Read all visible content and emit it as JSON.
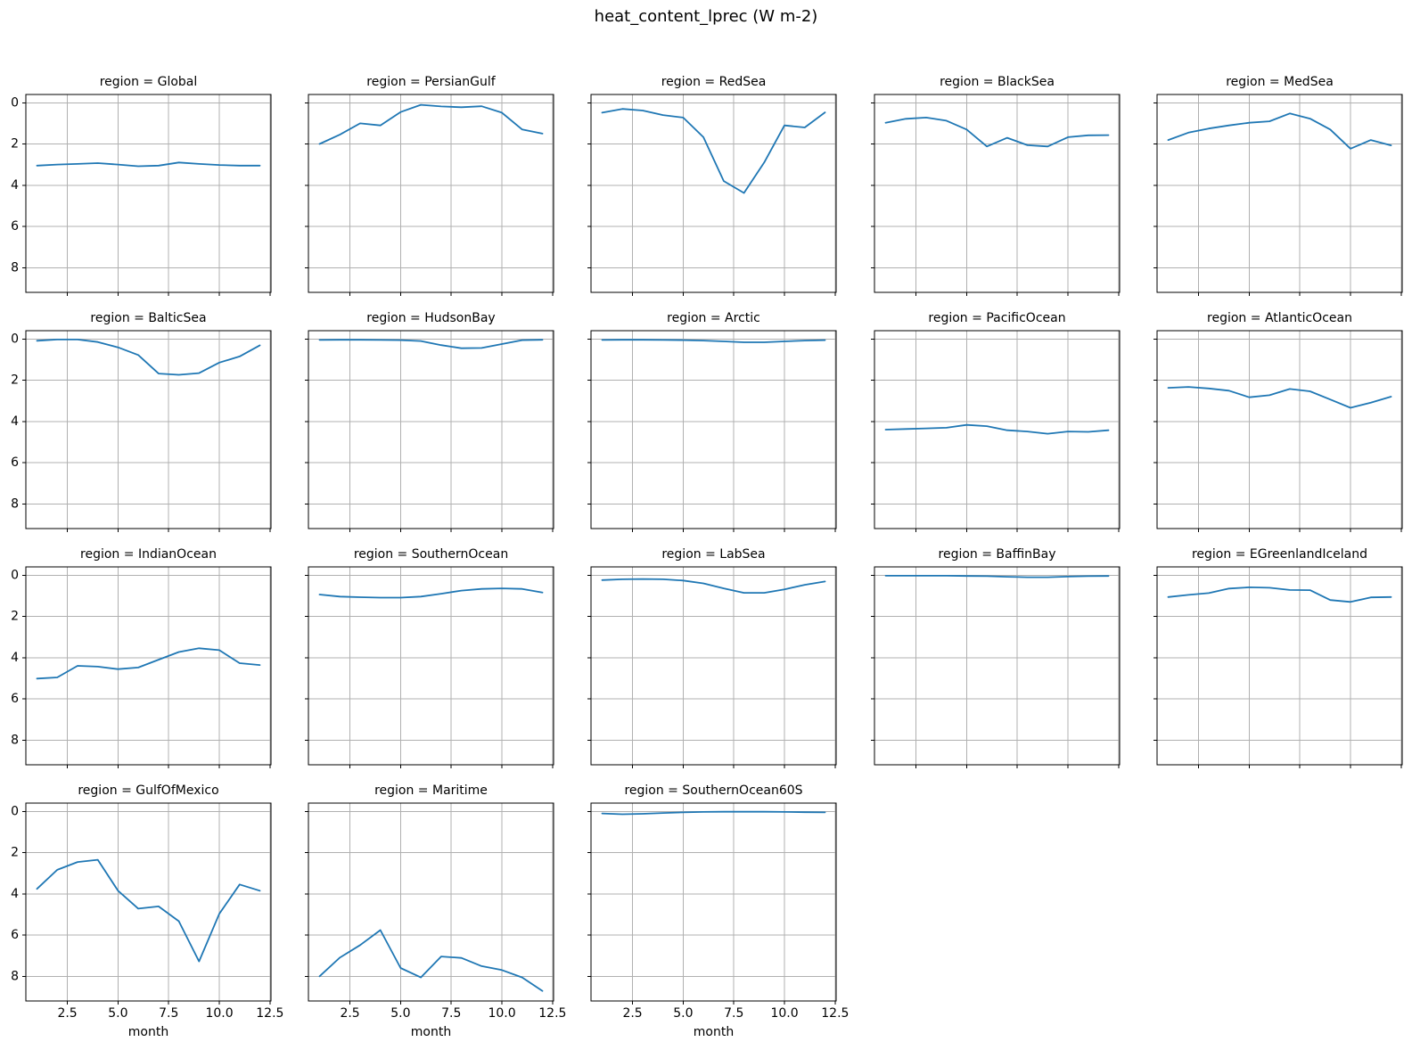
{
  "chart_data": {
    "type": "line",
    "title": "heat_content_lprec (W m-2)",
    "xlabel": "month",
    "x": [
      1,
      2,
      3,
      4,
      5,
      6,
      7,
      8,
      9,
      10,
      11,
      12
    ],
    "x_ticks": [
      2.5,
      5.0,
      7.5,
      10.0,
      12.5
    ],
    "x_tick_labels": [
      "2.5",
      "5.0",
      "7.5",
      "10.0",
      "12.5"
    ],
    "y_ticks": [
      0,
      2,
      4,
      6,
      8
    ],
    "y_tick_labels": [
      "0",
      "2",
      "4",
      "6",
      "8"
    ],
    "xlim": [
      0.45,
      12.55
    ],
    "ylim": [
      -0.4,
      9.2
    ],
    "y_axis_inverted": true,
    "grid": true,
    "legend": "none",
    "line_color": "#1f77b4",
    "grid_color": "#b0b0b0",
    "facet_columns": 5,
    "facet_title_prefix": "region = ",
    "series": [
      {
        "name": "Global",
        "label": "region = Global",
        "values": [
          3.05,
          3.0,
          2.97,
          2.93,
          3.0,
          3.08,
          3.05,
          2.9,
          2.97,
          3.02,
          3.05,
          3.05
        ]
      },
      {
        "name": "PersianGulf",
        "label": "region = PersianGulf",
        "values": [
          2.0,
          1.55,
          1.0,
          1.1,
          0.45,
          0.1,
          0.18,
          0.22,
          0.17,
          0.48,
          1.3,
          1.5
        ]
      },
      {
        "name": "RedSea",
        "label": "region = RedSea",
        "values": [
          0.48,
          0.3,
          0.38,
          0.6,
          0.72,
          1.67,
          3.8,
          4.38,
          2.9,
          1.1,
          1.2,
          0.47
        ]
      },
      {
        "name": "BlackSea",
        "label": "region = BlackSea",
        "values": [
          0.97,
          0.78,
          0.72,
          0.87,
          1.3,
          2.12,
          1.7,
          2.06,
          2.12,
          1.67,
          1.58,
          1.57
        ]
      },
      {
        "name": "MedSea",
        "label": "region = MedSea",
        "values": [
          1.81,
          1.45,
          1.25,
          1.1,
          0.97,
          0.9,
          0.52,
          0.77,
          1.3,
          2.23,
          1.81,
          2.07
        ]
      },
      {
        "name": "BalticSea",
        "label": "region = BalticSea",
        "values": [
          0.09,
          0.03,
          0.03,
          0.15,
          0.41,
          0.78,
          1.68,
          1.74,
          1.66,
          1.15,
          0.85,
          0.31
        ]
      },
      {
        "name": "HudsonBay",
        "label": "region = HudsonBay",
        "values": [
          0.05,
          0.04,
          0.04,
          0.05,
          0.06,
          0.1,
          0.3,
          0.45,
          0.44,
          0.25,
          0.06,
          0.04
        ]
      },
      {
        "name": "Arctic",
        "label": "region = Arctic",
        "values": [
          0.05,
          0.04,
          0.04,
          0.05,
          0.06,
          0.08,
          0.12,
          0.16,
          0.16,
          0.12,
          0.08,
          0.06
        ]
      },
      {
        "name": "PacificOcean",
        "label": "region = PacificOcean",
        "values": [
          4.4,
          4.37,
          4.34,
          4.31,
          4.17,
          4.23,
          4.43,
          4.49,
          4.6,
          4.49,
          4.51,
          4.43
        ]
      },
      {
        "name": "AtlanticOcean",
        "label": "region = AtlanticOcean",
        "values": [
          2.37,
          2.33,
          2.4,
          2.51,
          2.83,
          2.73,
          2.43,
          2.54,
          2.94,
          3.34,
          3.09,
          2.8
        ]
      },
      {
        "name": "IndianOcean",
        "label": "region = IndianOcean",
        "values": [
          5.02,
          4.96,
          4.4,
          4.44,
          4.56,
          4.48,
          4.1,
          3.73,
          3.55,
          3.64,
          4.27,
          4.36
        ]
      },
      {
        "name": "SouthernOcean",
        "label": "region = SouthernOcean",
        "values": [
          0.94,
          1.04,
          1.07,
          1.09,
          1.09,
          1.04,
          0.9,
          0.75,
          0.67,
          0.64,
          0.67,
          0.84
        ]
      },
      {
        "name": "LabSea",
        "label": "region = LabSea",
        "values": [
          0.24,
          0.2,
          0.19,
          0.2,
          0.26,
          0.4,
          0.64,
          0.86,
          0.86,
          0.69,
          0.47,
          0.31
        ]
      },
      {
        "name": "BaffinBay",
        "label": "region = BaffinBay",
        "values": [
          0.03,
          0.03,
          0.03,
          0.03,
          0.04,
          0.05,
          0.08,
          0.1,
          0.1,
          0.07,
          0.05,
          0.04
        ]
      },
      {
        "name": "EGreenlandIceland",
        "label": "region = EGreenlandIceland",
        "values": [
          1.06,
          0.96,
          0.87,
          0.65,
          0.59,
          0.61,
          0.72,
          0.73,
          1.21,
          1.3,
          1.08,
          1.06
        ]
      },
      {
        "name": "GulfOfMexico",
        "label": "region = GulfOfMexico",
        "values": [
          3.76,
          2.84,
          2.46,
          2.35,
          3.85,
          4.72,
          4.61,
          5.33,
          7.28,
          4.97,
          3.55,
          3.85
        ]
      },
      {
        "name": "Maritime",
        "label": "region = Maritime",
        "values": [
          8.0,
          7.1,
          6.49,
          5.76,
          7.6,
          8.06,
          7.04,
          7.11,
          7.51,
          7.7,
          8.06,
          8.71
        ]
      },
      {
        "name": "SouthernOcean60S",
        "label": "region = SouthernOcean60S",
        "values": [
          0.1,
          0.14,
          0.12,
          0.08,
          0.05,
          0.03,
          0.02,
          0.02,
          0.02,
          0.03,
          0.04,
          0.05
        ]
      }
    ]
  }
}
